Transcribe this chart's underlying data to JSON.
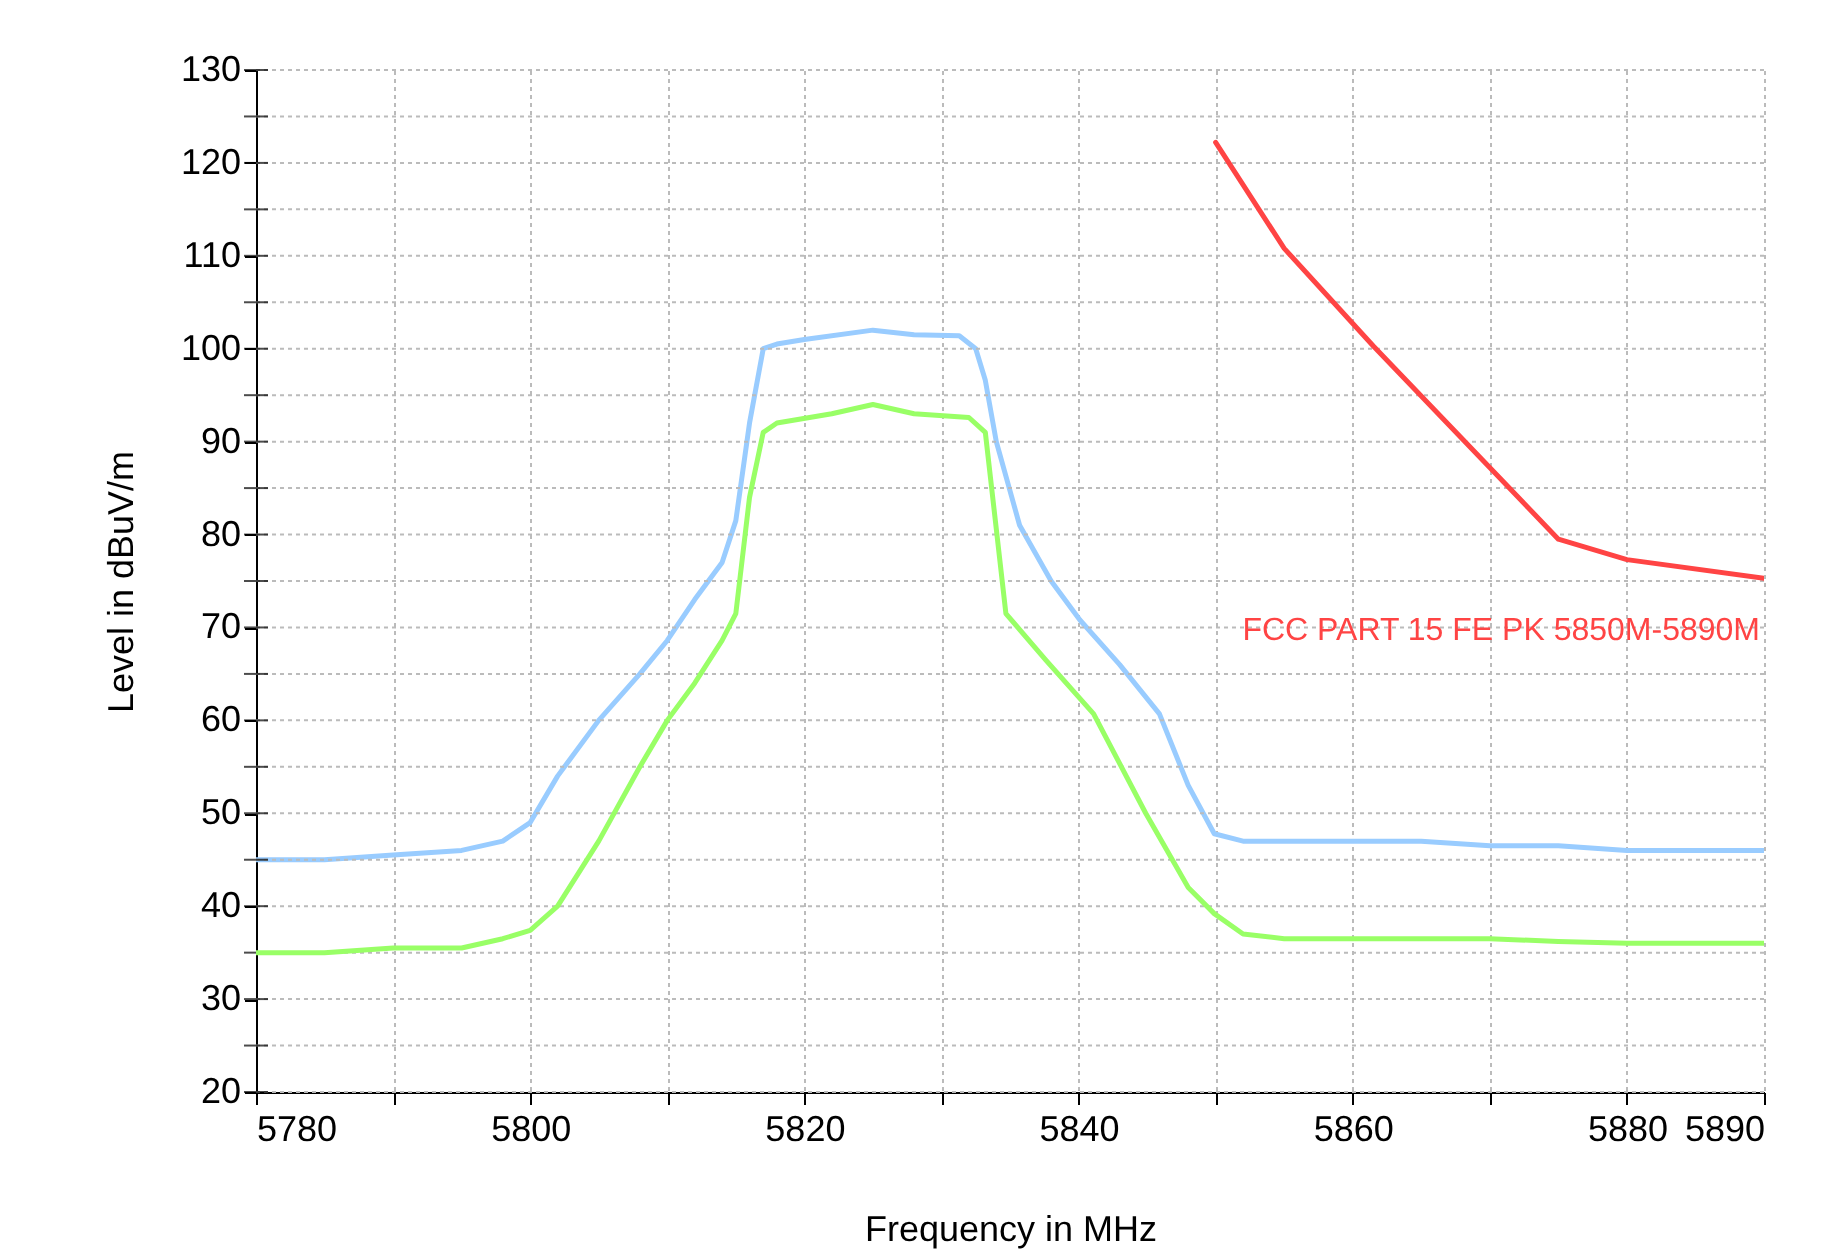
{
  "chart_data": {
    "type": "line",
    "xlabel": "Frequency in MHz",
    "ylabel": "Level in dBuV/m",
    "xlim": [
      5780,
      5890
    ],
    "ylim": [
      20,
      130
    ],
    "xticks": [
      5780,
      {
        "value": 5790,
        "label": null
      },
      5800,
      {
        "value": 5810,
        "label": null
      },
      5820,
      {
        "value": 5830,
        "label": null
      },
      5840,
      {
        "value": 5850,
        "label": null
      },
      5860,
      {
        "value": 5870,
        "label": null
      },
      5880,
      5890
    ],
    "yticks": [
      20,
      {
        "value": 25,
        "label": null
      },
      30,
      {
        "value": 35,
        "label": null
      },
      40,
      {
        "value": 45,
        "label": null
      },
      50,
      {
        "value": 55,
        "label": null
      },
      60,
      {
        "value": 65,
        "label": null
      },
      70,
      {
        "value": 75,
        "label": null
      },
      80,
      {
        "value": 85,
        "label": null
      },
      90,
      {
        "value": 95,
        "label": null
      },
      100,
      {
        "value": 105,
        "label": null
      },
      110,
      {
        "value": 115,
        "label": null
      },
      120,
      {
        "value": 125,
        "label": null
      },
      130
    ],
    "grid": true,
    "legend": false,
    "marker": "none",
    "line_style": "solid",
    "series": [
      {
        "color": "#99ccff",
        "x": [
          5780,
          5785,
          5790,
          5795,
          5798,
          5800,
          5802,
          5805,
          5808,
          5810,
          5812,
          5814,
          5815,
          5816,
          5817,
          5818,
          5820,
          5825,
          5828,
          5831.3,
          5832.5,
          5833.2,
          5834,
          5835.7,
          5838,
          5840.1,
          5843,
          5845.9,
          5848,
          5849.9,
          5852,
          5855,
          5860,
          5865,
          5870,
          5875,
          5880,
          5885,
          5890
        ],
        "values": [
          45,
          45,
          45.5,
          46,
          47,
          49,
          54,
          60,
          65,
          68.6,
          73,
          77,
          81.5,
          92,
          100,
          100.5,
          101,
          102,
          101.5,
          101.4,
          100,
          96.6,
          90,
          81,
          75,
          70.8,
          66,
          60.7,
          53,
          47.8,
          47,
          47,
          47,
          47,
          46.5,
          46.5,
          46,
          46,
          46
        ]
      },
      {
        "color": "#99ff66",
        "x": [
          5780,
          5785,
          5790,
          5795,
          5798,
          5800,
          5802,
          5805,
          5808,
          5810,
          5812,
          5814,
          5815,
          5816,
          5817,
          5818,
          5822,
          5825,
          5828,
          5832,
          5833.2,
          5834.7,
          5837.6,
          5841.1,
          5844.9,
          5848,
          5849.9,
          5852,
          5855,
          5860,
          5865,
          5870,
          5875,
          5880,
          5885,
          5890
        ],
        "values": [
          35,
          35,
          35.5,
          35.5,
          36.5,
          37.4,
          40,
          47,
          55,
          60,
          64,
          68.6,
          71.5,
          84,
          91,
          92,
          93,
          94,
          93,
          92.6,
          91,
          71.5,
          66.5,
          60.7,
          50,
          42,
          39.2,
          37,
          36.5,
          36.5,
          36.5,
          36.5,
          36.2,
          36,
          36,
          36
        ]
      },
      {
        "name": "FCC PART 15 FE PK 5850M-5890M",
        "color": "#ff4444",
        "x": [
          5850,
          5855,
          5861.5,
          5875,
          5880,
          5890
        ],
        "values": [
          122.2,
          110.8,
          100.3,
          79.5,
          77.3,
          75.3
        ]
      }
    ]
  }
}
